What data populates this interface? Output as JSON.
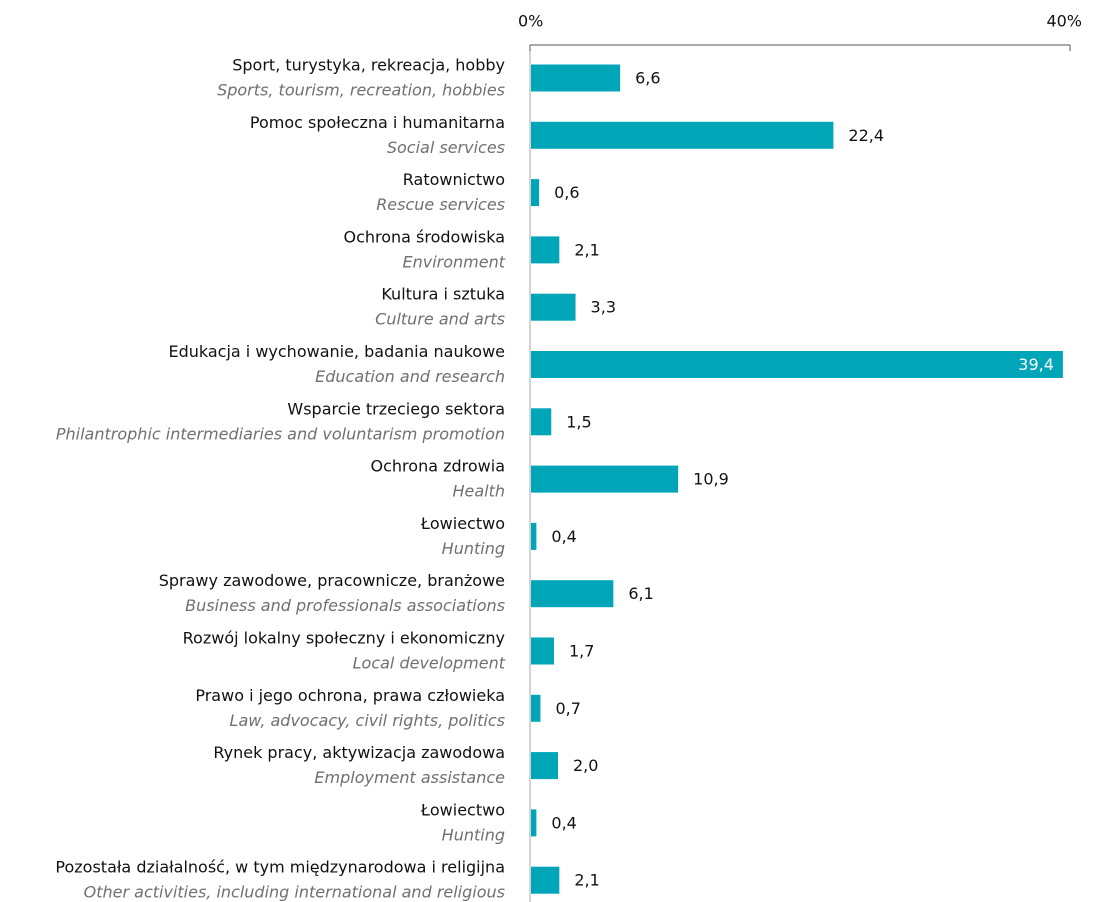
{
  "chart_data": {
    "type": "bar",
    "orientation": "horizontal",
    "categories": [
      "Sport, turystyka, rekreacja, hobby",
      "Pomoc społeczna i humanitarna",
      "Ratownictwo",
      "Ochrona środowiska",
      "Kultura i sztuka",
      "Edukacja i wychowanie, badania naukowe",
      "Wsparcie trzeciego sektora",
      "Ochrona zdrowia",
      "Łowiectwo",
      "Sprawy zawodowe, pracownicze, branżowe",
      "Rozwój lokalny społeczny i ekonomiczny",
      "Prawo i jego ochrona, prawa człowieka",
      "Rynek pracy, aktywizacja zawodowa",
      "Łowiectwo",
      "Pozostała działalność, w tym międzynarodowa i religijna"
    ],
    "category_translations": [
      "Sports, tourism, recreation, hobbies",
      "Social services",
      "Rescue services",
      "Environment",
      "Culture and arts",
      "Education and research",
      "Philantrophic intermediaries and voluntarism promotion",
      "Health",
      "Hunting",
      "Business and professionals associations",
      "Local development",
      "Law, advocacy, civil rights, politics",
      "Employment assistance",
      "Hunting",
      "Other activities, including international and religious"
    ],
    "values": [
      6.6,
      22.4,
      0.6,
      2.1,
      3.3,
      39.4,
      1.5,
      10.9,
      0.4,
      6.1,
      1.7,
      0.7,
      2.0,
      0.4,
      2.1
    ],
    "value_labels": [
      "6,6",
      "22,4",
      "0,6",
      "2,1",
      "3,3",
      "39,4",
      "1,5",
      "10,9",
      "0,4",
      "6,1",
      "1,7",
      "0,7",
      "2,0",
      "0,4",
      "2,1"
    ],
    "color": "#00a6b8",
    "xlim": [
      0,
      40
    ],
    "xticks": [
      {
        "value": 0,
        "label": "0%"
      },
      {
        "value": 40,
        "label": "40%"
      }
    ]
  }
}
